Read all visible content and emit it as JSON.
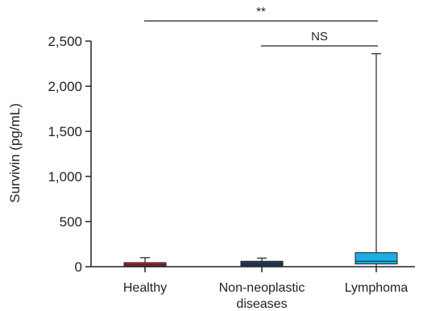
{
  "chart_data": {
    "type": "box",
    "ylabel": "Survivin (pg/mL)",
    "ylim": [
      0,
      2500
    ],
    "yticks": [
      0,
      500,
      1000,
      1500,
      2000,
      2500
    ],
    "ytick_labels": [
      "0",
      "500",
      "1,000",
      "1,500",
      "2,000",
      "2,500"
    ],
    "categories": [
      {
        "label_lines": [
          "Healthy"
        ]
      },
      {
        "label_lines": [
          "Non-neoplastic",
          "diseases"
        ]
      },
      {
        "label_lines": [
          "Lymphoma"
        ]
      }
    ],
    "boxes": [
      {
        "q1": 5,
        "median": 20,
        "q3": 45,
        "whisker_low": 0,
        "whisker_high": 100,
        "color": "#b5213a"
      },
      {
        "q1": 10,
        "median": 30,
        "q3": 60,
        "whisker_low": 5,
        "whisker_high": 95,
        "color": "#1f3d6b"
      },
      {
        "q1": 30,
        "median": 60,
        "q3": 155,
        "whisker_low": 5,
        "whisker_high": 2360,
        "color": "#1aaee6"
      }
    ],
    "significance": [
      {
        "from": 0,
        "to": 2,
        "label": "**"
      },
      {
        "from": 1,
        "to": 2,
        "label": "NS"
      }
    ],
    "grid": false
  }
}
